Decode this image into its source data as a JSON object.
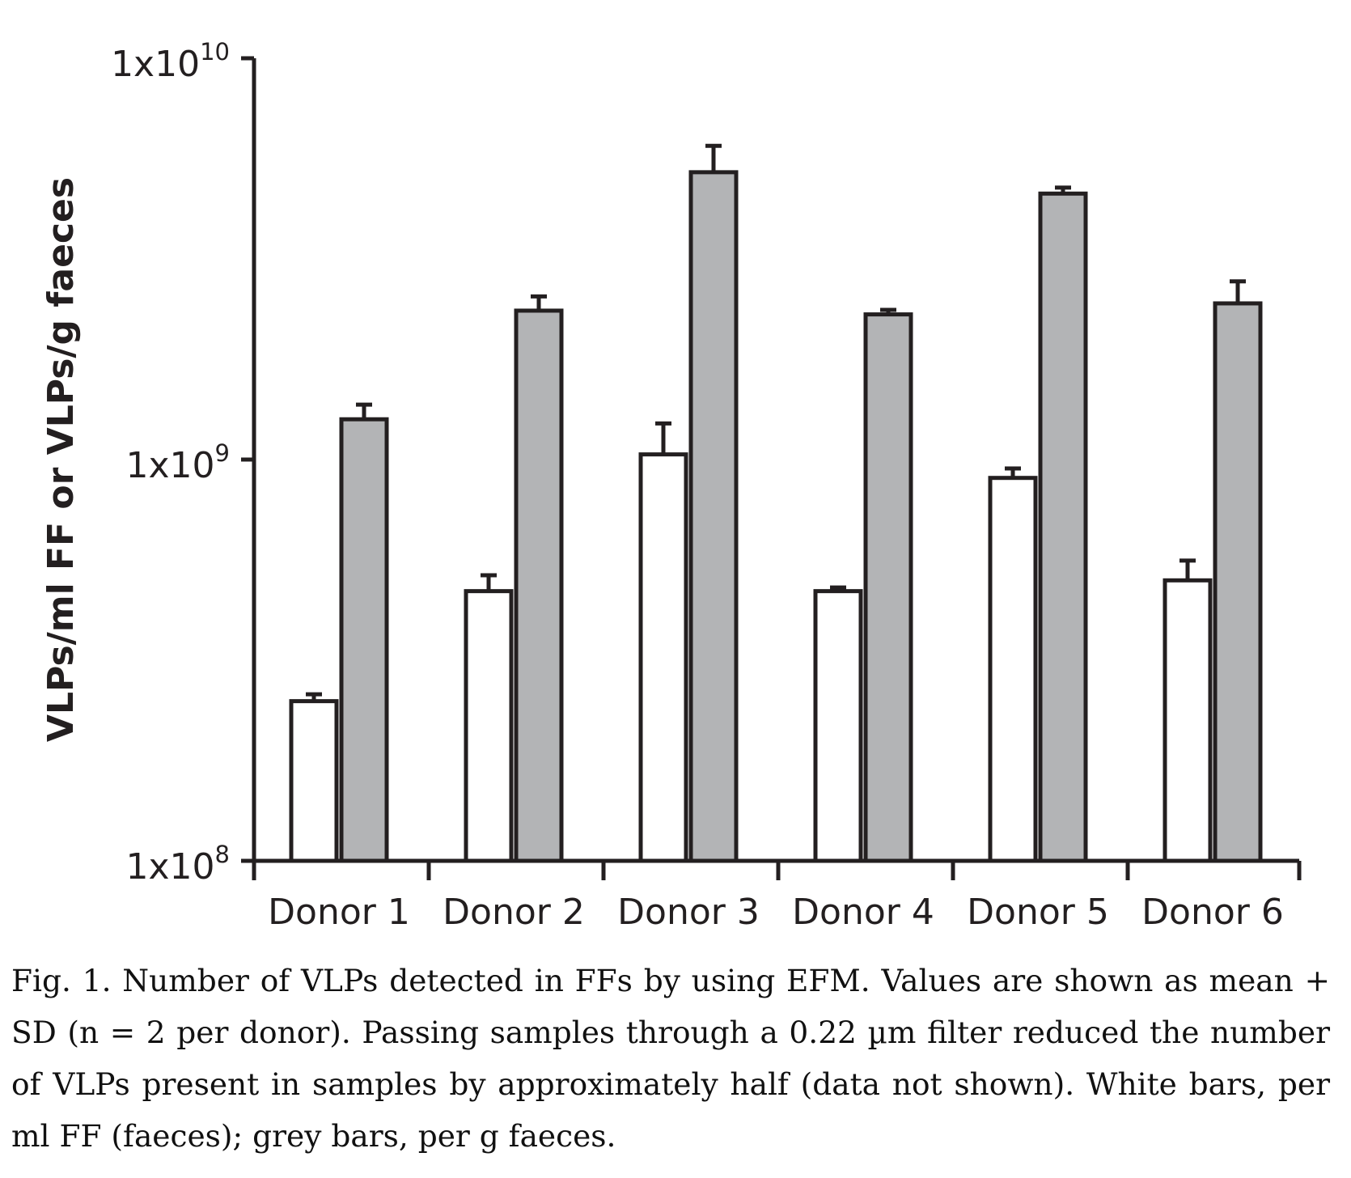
{
  "chart_data": {
    "type": "bar",
    "scale": "log",
    "ylabel": "VLPs/ml FF or VLPs/g faeces",
    "xlabel": "",
    "ylim": [
      100000000,
      10000000000
    ],
    "yticks": [
      {
        "value": 100000000,
        "base": "1x10",
        "exp": "8"
      },
      {
        "value": 1000000000,
        "base": "1x10",
        "exp": "9"
      },
      {
        "value": 10000000000,
        "base": "1x10",
        "exp": "10"
      }
    ],
    "categories": [
      "Donor 1",
      "Donor 2",
      "Donor 3",
      "Donor 4",
      "Donor 5",
      "Donor 6"
    ],
    "series": [
      {
        "key": "white",
        "fill": "#ffffff",
        "values": [
          250000000,
          470000000,
          1030000000,
          470000000,
          900000000,
          500000000
        ],
        "errors": [
          10000000,
          45000000,
          200000000,
          10000000,
          50000000,
          60000000
        ]
      },
      {
        "key": "grey",
        "fill": "#b3b4b6",
        "values": [
          1260000000,
          2350000000,
          5200000000,
          2300000000,
          4600000000,
          2450000000
        ],
        "errors": [
          110000000,
          200000000,
          850000000,
          60000000,
          160000000,
          330000000
        ]
      }
    ],
    "grid": false,
    "legend": "none"
  },
  "caption": "Fig. 1. Number of VLPs detected in FFs by using EFM. Values are shown as mean + SD (n = 2 per donor). Passing samples through a 0.22 µm filter reduced the number of VLPs present in samples by approximately half (data not shown). White bars, per ml FF (faeces); grey bars, per g faeces."
}
